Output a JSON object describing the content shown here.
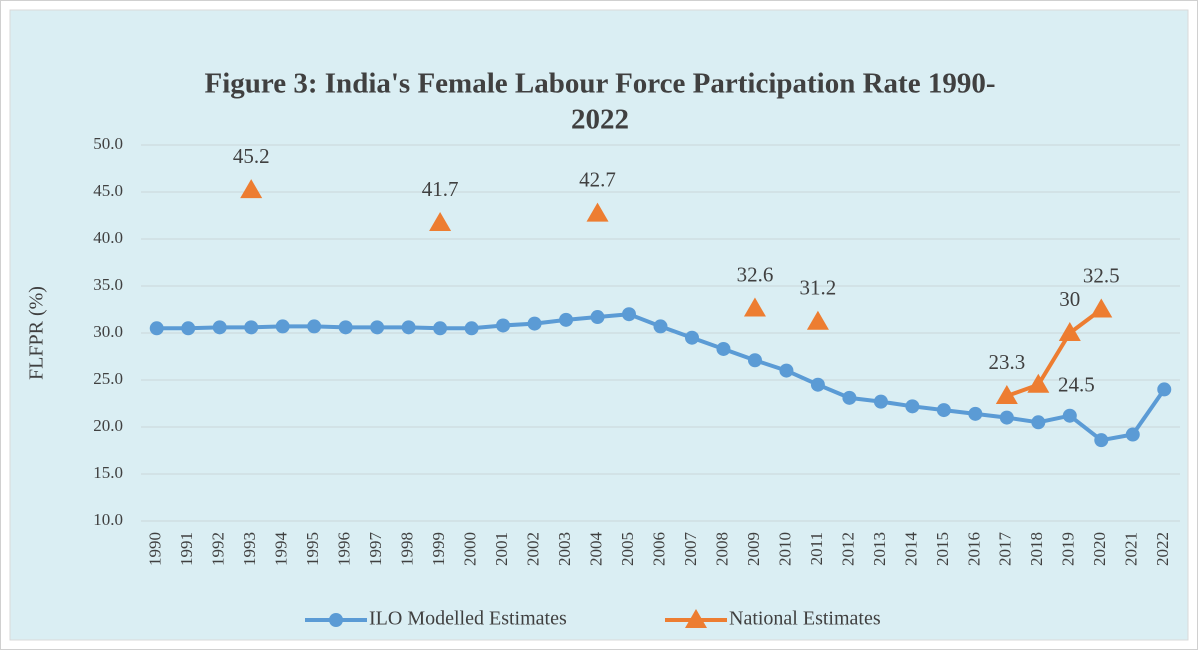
{
  "chart_data": {
    "type": "line",
    "title": "Figure 3: India's Female Labour Force Participation Rate 1990-",
    "title_line2": "2022",
    "ylabel": "FLFPR (%)",
    "categories": [
      "1990",
      "1991",
      "1992",
      "1993",
      "1994",
      "1995",
      "1996",
      "1997",
      "1998",
      "1999",
      "2000",
      "2001",
      "2002",
      "2003",
      "2004",
      "2005",
      "2006",
      "2007",
      "2008",
      "2009",
      "2010",
      "2011",
      "2012",
      "2013",
      "2014",
      "2015",
      "2016",
      "2017",
      "2018",
      "2019",
      "2020",
      "2021",
      "2022"
    ],
    "series": [
      {
        "name": "ILO Modelled Estimates",
        "color": "#5b9bd5",
        "marker": "circle",
        "values": [
          30.5,
          30.5,
          30.6,
          30.6,
          30.7,
          30.7,
          30.6,
          30.6,
          30.6,
          30.5,
          30.5,
          30.8,
          31.0,
          31.4,
          31.7,
          32.0,
          30.7,
          29.5,
          28.3,
          27.1,
          26.0,
          24.5,
          23.1,
          22.7,
          22.2,
          21.8,
          21.4,
          21.0,
          20.5,
          21.2,
          18.6,
          19.2,
          24.0
        ]
      },
      {
        "name": "National Estimates",
        "color": "#ed7d31",
        "marker": "triangle",
        "data_labels": true,
        "values": [
          null,
          null,
          null,
          45.2,
          null,
          null,
          null,
          null,
          null,
          41.7,
          null,
          null,
          null,
          null,
          42.7,
          null,
          null,
          null,
          null,
          32.6,
          null,
          31.2,
          null,
          null,
          null,
          null,
          null,
          23.3,
          24.5,
          30,
          32.5,
          null,
          null
        ]
      }
    ],
    "ylim": [
      10,
      50
    ],
    "yticks": [
      {
        "value": 10,
        "label": "10.0"
      },
      {
        "value": 15,
        "label": "15.0"
      },
      {
        "value": 20,
        "label": "20.0"
      },
      {
        "value": 25,
        "label": "25.0"
      },
      {
        "value": 30,
        "label": "30.0"
      },
      {
        "value": 35,
        "label": "35.0"
      },
      {
        "value": 40,
        "label": "40.0"
      },
      {
        "value": 45,
        "label": "45.0"
      },
      {
        "value": 50,
        "label": "50.0"
      }
    ],
    "grid": true,
    "legend": "bottom"
  }
}
